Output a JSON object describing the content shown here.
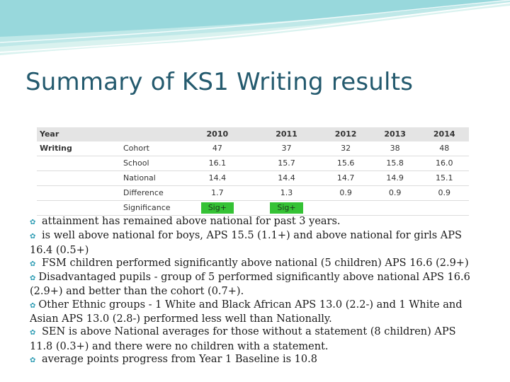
{
  "slide": {
    "title": "Summary of KS1 Writing results",
    "accent_color": "#245a6e",
    "wave_colors": [
      "#8fd3d8",
      "#bfe8e8",
      "#d9f2ef"
    ]
  },
  "table": {
    "header": [
      "Year",
      "",
      "2010",
      "2011",
      "2012",
      "2013",
      "2014"
    ],
    "subject": "Writing",
    "rows": [
      {
        "label": "Cohort",
        "values": [
          "47",
          "37",
          "32",
          "38",
          "48"
        ]
      },
      {
        "label": "School",
        "values": [
          "16.1",
          "15.7",
          "15.6",
          "15.8",
          "16.0"
        ]
      },
      {
        "label": "National",
        "values": [
          "14.4",
          "14.4",
          "14.7",
          "14.9",
          "15.1"
        ]
      },
      {
        "label": "Difference",
        "values": [
          "1.7",
          "1.3",
          "0.9",
          "0.9",
          "0.9"
        ]
      },
      {
        "label": "Significance",
        "values": [
          "Sig+",
          "Sig+",
          "",
          "",
          ""
        ]
      }
    ],
    "sig_color": "#35c235"
  },
  "notes": [
    {
      "bullet": "bullet-icon",
      "text": " attainment has remained above national for past 3 years."
    },
    {
      "bullet": "bullet-icon",
      "text": " is well above national for boys, APS 15.5 (1.1+) and above national for girls  APS 16.4 (0.5+)"
    },
    {
      "bullet": "bullet-icon",
      "text": "  FSM children performed significantly above national (5 children) APS 16.6 (2.9+)"
    },
    {
      "bullet": "bullet-icon",
      "text": "Disadvantaged pupils - group of 5 performed significantly above national APS 16.6 (2.9+) and better than the cohort (0.7+)."
    },
    {
      "bullet": "bullet-icon",
      "text": "Other Ethnic groups - 1 White and Black African APS 13.0 (2.2-) and 1 White and Asian APS 13.0 (2.8-) performed less well than Nationally."
    },
    {
      "bullet": "bullet-icon",
      "text": " SEN is above National averages for those without a statement  (8 children) APS 11.8 (0.3+) and there were no children with a statement."
    },
    {
      "bullet": "bullet-icon",
      "text": " average points progress from Year 1 Baseline is 10.8"
    }
  ]
}
